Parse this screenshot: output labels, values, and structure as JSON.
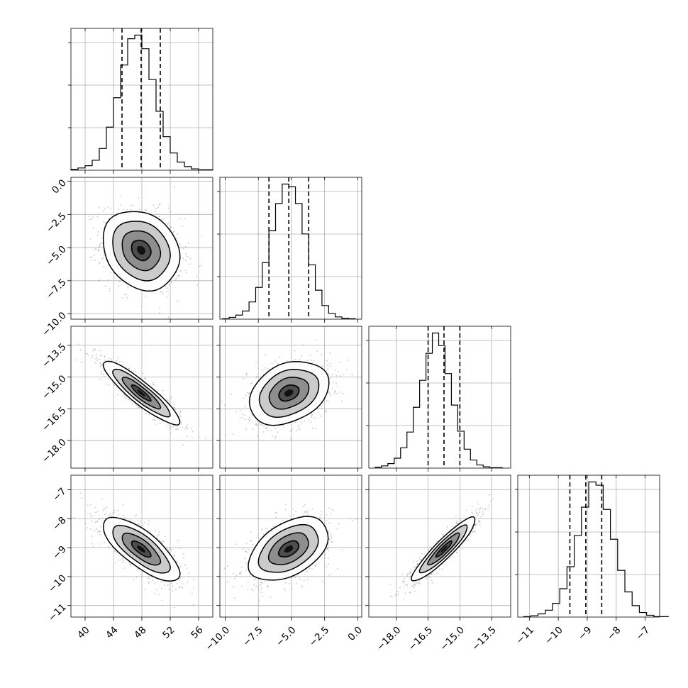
{
  "chart_data": {
    "type": "corner",
    "grid": true,
    "colors": {
      "line": "#000000",
      "grid": "#b0b0b0",
      "points": "#9a9a9a",
      "frame": "#000000"
    },
    "parameters": [
      {
        "ticks": [
          40,
          44,
          48,
          52,
          56
        ],
        "tick_labels": [
          "40",
          "44",
          "48",
          "52",
          "56"
        ],
        "range": [
          38,
          58
        ],
        "quantiles": [
          45.2,
          47.9,
          50.6
        ],
        "hist": {
          "edges_start": 38,
          "bin_width": 1,
          "counts": [
            2,
            5,
            10,
            22,
            48,
            95,
            160,
            232,
            290,
            298,
            268,
            200,
            130,
            74,
            38,
            18,
            8,
            3,
            1,
            1
          ]
        }
      },
      {
        "ticks": [
          -10.0,
          -7.5,
          -5.0,
          -2.5,
          0.0
        ],
        "tick_labels": [
          "−10.0",
          "−7.5",
          "−5.0",
          "−2.5",
          "0.0"
        ],
        "range": [
          -10.4,
          0.3
        ],
        "quantiles": [
          -6.7,
          -5.2,
          -3.7
        ],
        "hist": {
          "edges_start": -10.2,
          "bin_width": 0.5,
          "counts": [
            1,
            4,
            9,
            18,
            38,
            70,
            125,
            195,
            255,
            298,
            292,
            255,
            188,
            120,
            64,
            30,
            13,
            5,
            2,
            1
          ]
        }
      },
      {
        "ticks": [
          -18.0,
          -16.5,
          -15.0,
          -13.5
        ],
        "tick_labels": [
          "−18.0",
          "−16.5",
          "−15.0",
          "−13.5"
        ],
        "range": [
          -19.3,
          -12.6
        ],
        "quantiles": [
          -16.5,
          -15.75,
          -15.0
        ],
        "hist": {
          "edges_start": -19.0,
          "bin_width": 0.3,
          "counts": [
            2,
            5,
            10,
            22,
            45,
            80,
            135,
            195,
            255,
            300,
            272,
            210,
            140,
            82,
            42,
            18,
            7,
            3,
            1,
            1
          ]
        }
      },
      {
        "ticks": [
          -11,
          -10,
          -9,
          -8,
          -7
        ],
        "tick_labels": [
          "−11",
          "−10",
          "−9",
          "−8",
          "−7"
        ],
        "range": [
          -11.4,
          -6.5
        ],
        "quantiles": [
          -9.6,
          -9.05,
          -8.5
        ],
        "hist": {
          "edges_start": -11.2,
          "bin_width": 0.25,
          "counts": [
            1,
            3,
            7,
            15,
            30,
            62,
            110,
            178,
            240,
            295,
            288,
            235,
            170,
            102,
            55,
            25,
            10,
            4,
            1,
            1
          ]
        }
      }
    ],
    "pairs": [
      {
        "row": 1,
        "col": 0,
        "mean": [
          47.9,
          -5.2
        ],
        "sd": [
          2.7,
          1.5
        ],
        "rho": -0.2
      },
      {
        "row": 2,
        "col": 0,
        "mean": [
          47.9,
          -15.75
        ],
        "sd": [
          2.7,
          0.75
        ],
        "rho": -0.9
      },
      {
        "row": 2,
        "col": 1,
        "mean": [
          -5.2,
          -15.75
        ],
        "sd": [
          1.5,
          0.75
        ],
        "rho": 0.3
      },
      {
        "row": 3,
        "col": 0,
        "mean": [
          47.9,
          -9.05
        ],
        "sd": [
          2.7,
          0.55
        ],
        "rho": -0.75
      },
      {
        "row": 3,
        "col": 1,
        "mean": [
          -5.2,
          -9.05
        ],
        "sd": [
          1.5,
          0.55
        ],
        "rho": 0.45
      },
      {
        "row": 3,
        "col": 2,
        "mean": [
          -15.75,
          -9.05
        ],
        "sd": [
          0.75,
          0.55
        ],
        "rho": 0.92
      }
    ]
  }
}
